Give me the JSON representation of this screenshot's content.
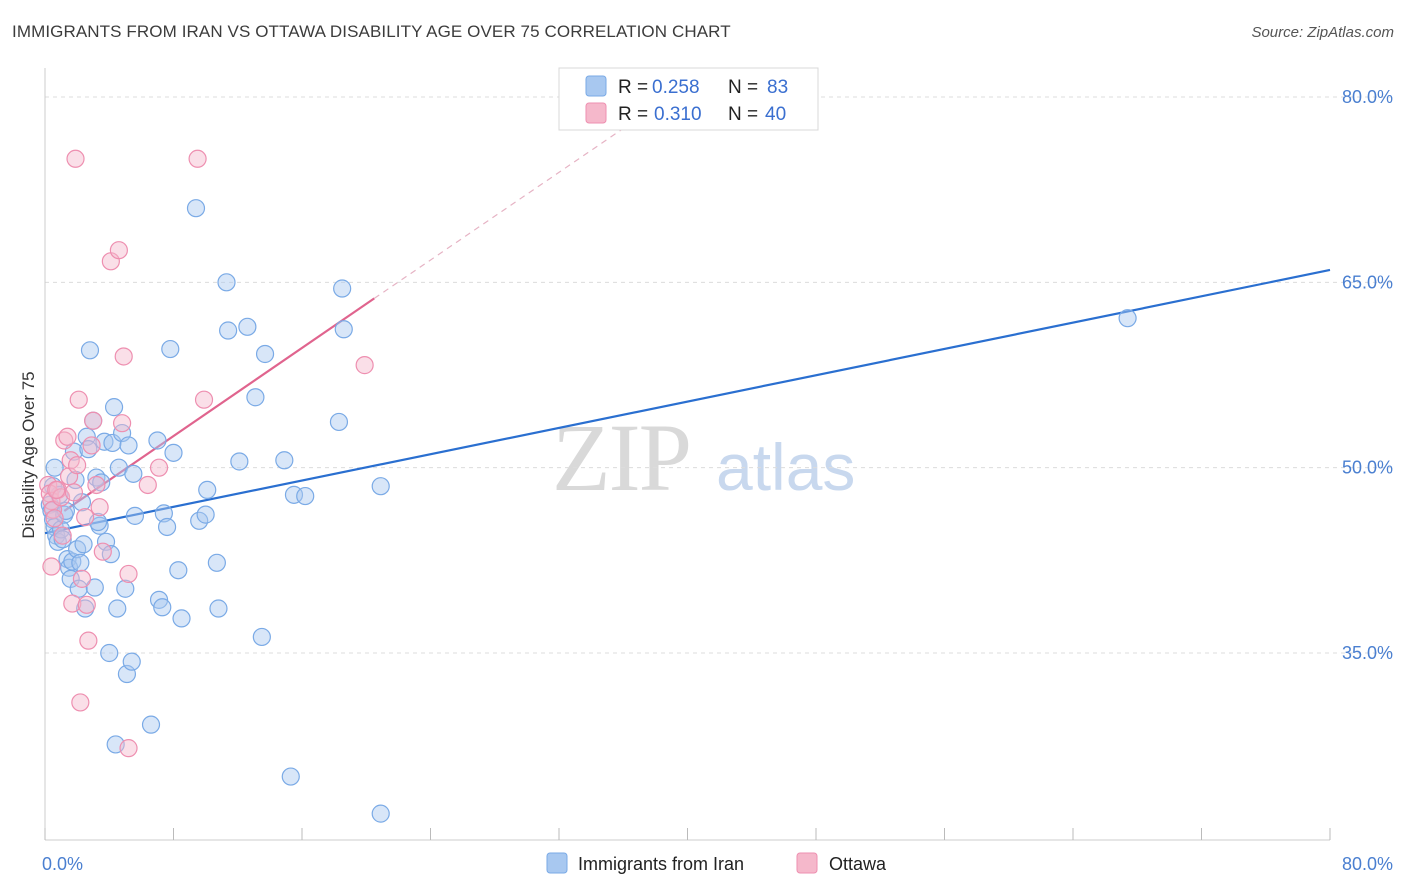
{
  "header": {
    "title": "IMMIGRANTS FROM IRAN VS OTTAWA DISABILITY AGE OVER 75 CORRELATION CHART",
    "source": "Source: ZipAtlas.com"
  },
  "watermark": {
    "zip": "ZIP",
    "atlas": "atlas"
  },
  "legend": {
    "r_label": "R =",
    "n_label": "N =",
    "entries": [
      {
        "r": "0.258",
        "n": "83",
        "color": "#a8c8f0"
      },
      {
        "r": "0.310",
        "n": "40",
        "color": "#f5b8cb"
      }
    ]
  },
  "bottom_legend": [
    {
      "label": "Immigrants from Iran",
      "color": "#a8c8f0"
    },
    {
      "label": "Ottawa",
      "color": "#f5b8cb"
    }
  ],
  "colors": {
    "blue_point": "#7aaae6",
    "blue_line": "#2a6fd0",
    "pink_point": "#ee8fb0",
    "pink_line": "#e0648e",
    "tick_text": "#4a7fd0",
    "grid": "#dcdcdc"
  },
  "chart_data": {
    "type": "scatter",
    "title": "IMMIGRANTS FROM IRAN VS OTTAWA DISABILITY AGE OVER 75 CORRELATION CHART",
    "xlabel": "",
    "ylabel": "Disability Age Over 75",
    "xlim": [
      0,
      80
    ],
    "ylim": [
      20,
      82
    ],
    "x_tick_labels": [
      "0.0%",
      "80.0%"
    ],
    "y_tick_labels": [
      "35.0%",
      "50.0%",
      "65.0%",
      "80.0%"
    ],
    "y_ticks": [
      35,
      50,
      65,
      80
    ],
    "grid": true,
    "legend_position": "top-center",
    "series": [
      {
        "name": "Immigrants from Iran",
        "r": 0.258,
        "n": 83,
        "trend": {
          "x": [
            0,
            80
          ],
          "y": [
            44.7,
            66.0
          ],
          "style": "solid"
        },
        "points": [
          [
            0.3,
            47.0
          ],
          [
            0.4,
            46.5
          ],
          [
            0.5,
            45.8
          ],
          [
            0.6,
            45.2
          ],
          [
            0.7,
            44.5
          ],
          [
            0.8,
            44.0
          ],
          [
            0.5,
            48.5
          ],
          [
            1.0,
            45.0
          ],
          [
            0.9,
            47.8
          ],
          [
            1.2,
            46.2
          ],
          [
            1.1,
            44.2
          ],
          [
            1.4,
            42.6
          ],
          [
            1.5,
            41.9
          ],
          [
            1.6,
            41.0
          ],
          [
            1.7,
            42.4
          ],
          [
            1.8,
            51.3
          ],
          [
            1.9,
            49.0
          ],
          [
            2.0,
            43.4
          ],
          [
            2.1,
            40.2
          ],
          [
            2.2,
            42.3
          ],
          [
            2.4,
            43.8
          ],
          [
            2.5,
            38.6
          ],
          [
            2.6,
            52.5
          ],
          [
            2.7,
            51.5
          ],
          [
            2.8,
            59.5
          ],
          [
            3.0,
            53.8
          ],
          [
            3.1,
            40.3
          ],
          [
            3.2,
            49.2
          ],
          [
            3.4,
            45.3
          ],
          [
            3.5,
            48.8
          ],
          [
            3.7,
            52.1
          ],
          [
            3.8,
            44.0
          ],
          [
            4.0,
            35.0
          ],
          [
            4.1,
            43.0
          ],
          [
            4.2,
            52.0
          ],
          [
            4.3,
            54.9
          ],
          [
            4.4,
            27.6
          ],
          [
            4.5,
            38.6
          ],
          [
            4.6,
            50.0
          ],
          [
            4.8,
            52.8
          ],
          [
            5.0,
            40.2
          ],
          [
            5.1,
            33.3
          ],
          [
            5.2,
            51.8
          ],
          [
            5.4,
            34.3
          ],
          [
            5.5,
            49.5
          ],
          [
            5.6,
            46.1
          ],
          [
            6.6,
            29.2
          ],
          [
            7.0,
            52.2
          ],
          [
            7.1,
            39.3
          ],
          [
            7.3,
            38.7
          ],
          [
            7.4,
            46.3
          ],
          [
            7.6,
            45.2
          ],
          [
            7.8,
            59.6
          ],
          [
            8.0,
            51.2
          ],
          [
            8.3,
            41.7
          ],
          [
            8.5,
            37.8
          ],
          [
            9.4,
            71.0
          ],
          [
            9.6,
            45.7
          ],
          [
            10.0,
            46.2
          ],
          [
            10.1,
            48.2
          ],
          [
            10.7,
            42.3
          ],
          [
            10.8,
            38.6
          ],
          [
            11.3,
            65.0
          ],
          [
            11.4,
            61.1
          ],
          [
            12.1,
            50.5
          ],
          [
            12.6,
            61.4
          ],
          [
            13.1,
            55.7
          ],
          [
            13.5,
            36.3
          ],
          [
            13.7,
            59.2
          ],
          [
            14.9,
            50.6
          ],
          [
            15.5,
            47.8
          ],
          [
            16.2,
            47.7
          ],
          [
            18.3,
            53.7
          ],
          [
            18.5,
            64.5
          ],
          [
            18.6,
            61.2
          ],
          [
            20.9,
            48.5
          ],
          [
            20.9,
            22.0
          ],
          [
            15.3,
            25.0
          ],
          [
            67.4,
            62.1
          ],
          [
            0.6,
            50.0
          ],
          [
            1.3,
            46.5
          ],
          [
            2.3,
            47.2
          ],
          [
            3.3,
            45.6
          ]
        ]
      },
      {
        "name": "Ottawa",
        "r": 0.31,
        "n": 40,
        "trend": {
          "x": [
            1.2,
            20.5
          ],
          "y": [
            46.5,
            63.7
          ],
          "style": "solid"
        },
        "trend_extension": {
          "x": [
            20.5,
            40.0
          ],
          "y": [
            63.7,
            81.0
          ],
          "style": "dashed"
        },
        "points": [
          [
            0.2,
            48.6
          ],
          [
            0.3,
            47.9
          ],
          [
            0.4,
            47.3
          ],
          [
            0.5,
            46.6
          ],
          [
            0.6,
            45.9
          ],
          [
            0.4,
            42.0
          ],
          [
            0.8,
            48.2
          ],
          [
            1.0,
            47.6
          ],
          [
            1.1,
            44.5
          ],
          [
            1.2,
            52.2
          ],
          [
            1.4,
            52.5
          ],
          [
            1.5,
            49.3
          ],
          [
            1.6,
            50.6
          ],
          [
            1.7,
            39.0
          ],
          [
            1.8,
            48.0
          ],
          [
            1.9,
            75.0
          ],
          [
            2.0,
            50.2
          ],
          [
            2.1,
            55.5
          ],
          [
            2.2,
            31.0
          ],
          [
            2.3,
            41.0
          ],
          [
            2.5,
            46.0
          ],
          [
            2.6,
            38.9
          ],
          [
            2.7,
            36.0
          ],
          [
            2.9,
            51.8
          ],
          [
            3.0,
            53.8
          ],
          [
            3.2,
            48.6
          ],
          [
            3.4,
            46.8
          ],
          [
            3.6,
            43.2
          ],
          [
            4.1,
            66.7
          ],
          [
            4.6,
            67.6
          ],
          [
            4.8,
            53.6
          ],
          [
            4.9,
            59.0
          ],
          [
            5.2,
            41.4
          ],
          [
            5.2,
            27.3
          ],
          [
            6.4,
            48.6
          ],
          [
            7.1,
            50.0
          ],
          [
            9.5,
            75.0
          ],
          [
            9.9,
            55.5
          ],
          [
            19.9,
            58.3
          ],
          [
            0.7,
            48.2
          ]
        ]
      }
    ]
  }
}
